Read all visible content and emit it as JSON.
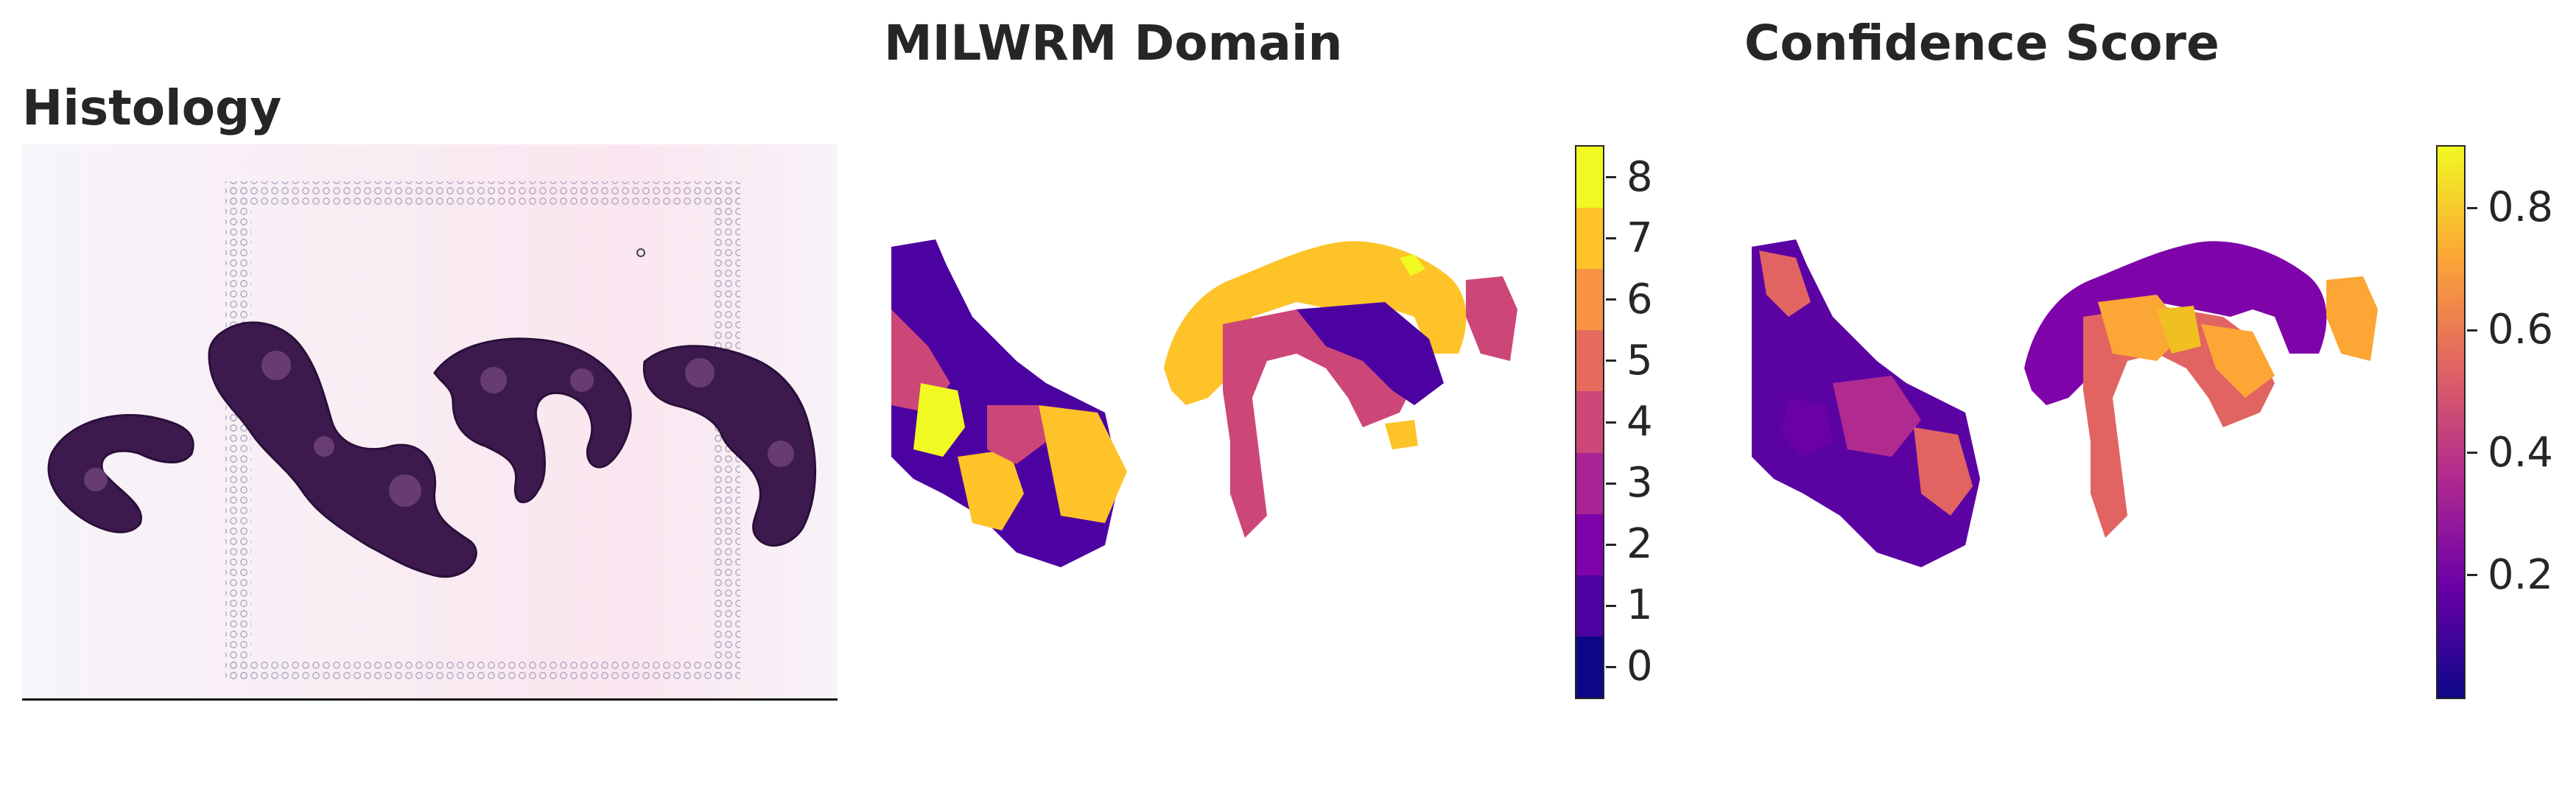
{
  "panels": {
    "histology": {
      "title": "Histology"
    },
    "domain": {
      "title": "MILWRM Domain",
      "colorbar": {
        "colors": [
          "#0d0887",
          "#4c02a1",
          "#7e03a8",
          "#a92395",
          "#cc4778",
          "#e56b5d",
          "#f89441",
          "#fdc328",
          "#f0f921"
        ],
        "tick_labels": [
          "0",
          "1",
          "2",
          "3",
          "4",
          "5",
          "6",
          "7",
          "8"
        ],
        "range": [
          -0.5,
          8.5
        ]
      }
    },
    "confidence": {
      "title": "Confidence Score",
      "colorbar": {
        "colors": [
          "#0d0887",
          "#6a00a8",
          "#b12a90",
          "#e16462",
          "#fca636",
          "#f0f921"
        ],
        "tick_labels": [
          "0.2",
          "0.4",
          "0.6",
          "0.8"
        ],
        "tick_values": [
          0.2,
          0.4,
          0.6,
          0.8
        ],
        "range": [
          0.0,
          0.9
        ]
      }
    }
  }
}
